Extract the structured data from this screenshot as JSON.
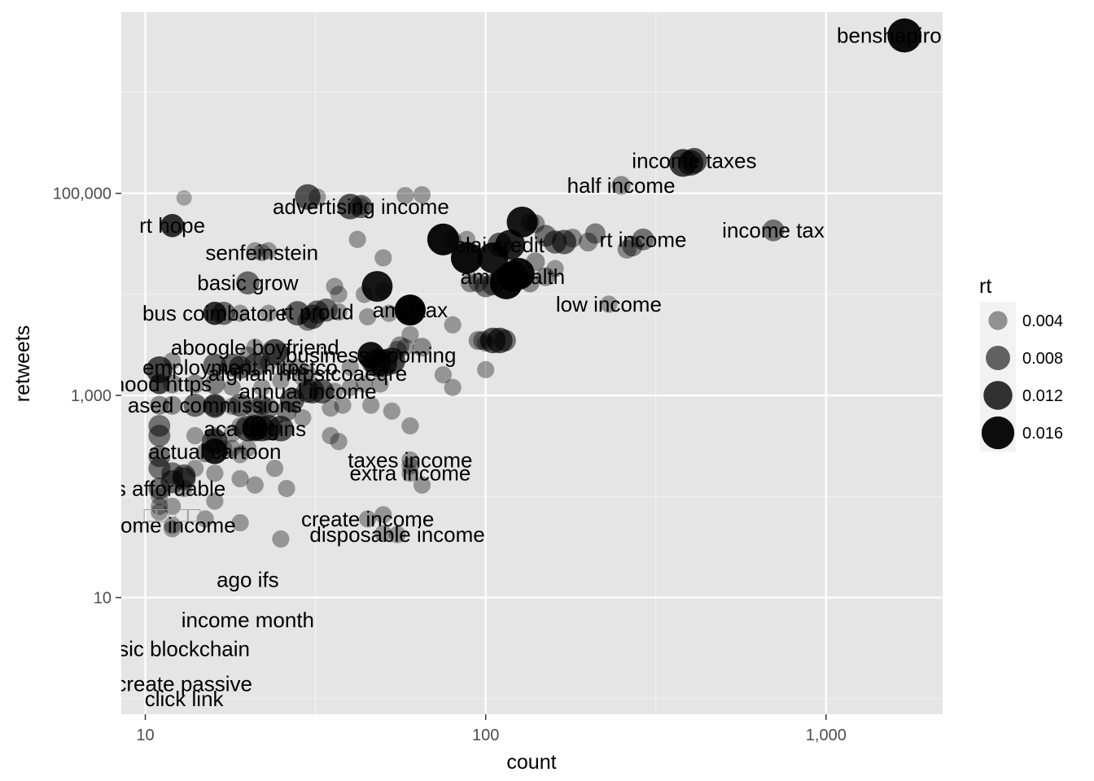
{
  "chart_data": {
    "type": "scatter",
    "xlabel": "count",
    "ylabel": "retweets",
    "x_scale": "log10",
    "y_scale": "log10",
    "xlim": [
      8.5,
      2200
    ],
    "ylim": [
      0.7,
      6200000
    ],
    "x_ticks": [
      10,
      100,
      1000
    ],
    "x_tick_labels": [
      "10",
      "100",
      "1,000"
    ],
    "y_ticks": [
      10,
      1000,
      100000
    ],
    "y_tick_labels": [
      "10",
      "1,000",
      "100,000"
    ],
    "grid": true,
    "legend": {
      "title": "rt",
      "position": "right",
      "values": [
        0.004,
        0.008,
        0.012,
        0.016
      ],
      "labels": [
        "0.004",
        "0.008",
        "0.012",
        "0.016"
      ]
    },
    "labeled_points": [
      {
        "label": "benshapiro fre",
        "x": 1700,
        "y": 3650000,
        "rt": 0.0175
      },
      {
        "label": "half income",
        "x": 250,
        "y": 120000,
        "rt": 0.004
      },
      {
        "label": "income taxes",
        "x": 410,
        "y": 210000,
        "rt": 0.009
      },
      {
        "label": "income tax",
        "x": 700,
        "y": 43000,
        "rt": 0.006
      },
      {
        "label": "rt income",
        "x": 290,
        "y": 35000,
        "rt": 0.006
      },
      {
        "label": "low income",
        "x": 230,
        "y": 8000,
        "rt": 0.003
      },
      {
        "label": "clai credit",
        "x": 110,
        "y": 31000,
        "rt": 0.008
      },
      {
        "label": "amp health",
        "x": 120,
        "y": 15000,
        "rt": 0.014
      },
      {
        "label": "amp tax",
        "x": 60,
        "y": 7000,
        "rt": 0.014
      },
      {
        "label": "advertising income",
        "x": 43,
        "y": 74000,
        "rt": 0.007
      },
      {
        "label": "rt hope",
        "x": 12,
        "y": 48000,
        "rt": 0.007
      },
      {
        "label": "senfeinstein",
        "x": 22,
        "y": 26000,
        "rt": 0.003
      },
      {
        "label": "basic grow",
        "x": 20,
        "y": 13000,
        "rt": 0.007
      },
      {
        "label": "bus coimbatore",
        "x": 16,
        "y": 6500,
        "rt": 0.007
      },
      {
        "label": "rt proud",
        "x": 32,
        "y": 6700,
        "rt": 0.007
      },
      {
        "label": "aboogle boyfriend",
        "x": 21,
        "y": 3000,
        "rt": 0.003
      },
      {
        "label": "employment httpstco",
        "x": 19,
        "y": 1900,
        "rt": 0.007
      },
      {
        "label": "business booming",
        "x": 46,
        "y": 2500,
        "rt": 0.01
      },
      {
        "label": "afghan httpstcoaeqre",
        "x": 30,
        "y": 1650,
        "rt": 0.003
      },
      {
        "label": "thood https",
        "x": 11,
        "y": 1300,
        "rt": 0.005
      },
      {
        "label": "annual income",
        "x": 30,
        "y": 1100,
        "rt": 0.007
      },
      {
        "label": "ased commissions",
        "x": 16,
        "y": 800,
        "rt": 0.007
      },
      {
        "label": "aca begins",
        "x": 21,
        "y": 470,
        "rt": 0.009
      },
      {
        "label": "actual cartoon",
        "x": 16,
        "y": 280,
        "rt": 0.009
      },
      {
        "label": "taxes income",
        "x": 60,
        "y": 230,
        "rt": 0.003
      },
      {
        "label": "extra income",
        "x": 60,
        "y": 170,
        "rt": 0.003
      },
      {
        "label": "ess affordable",
        "x": 11,
        "y": 120,
        "rt": 0.006
      },
      {
        "label": "create income",
        "x": 45,
        "y": 60,
        "rt": 0.003
      },
      {
        "label": "home income",
        "x": 12,
        "y": 52,
        "rt": 0.003
      },
      {
        "label": "disposable income",
        "x": 55,
        "y": 42,
        "rt": 0.003
      }
    ],
    "unlabeled_text_points": [
      {
        "label": "ago ifs",
        "x": 20,
        "y": 15
      },
      {
        "label": "income month",
        "x": 20,
        "y": 6
      },
      {
        "label": "basic blockchain",
        "x": 12,
        "y": 3.1
      },
      {
        "label": "create passive",
        "x": 13,
        "y": 1.4
      },
      {
        "label": "click link",
        "x": 13,
        "y": 1.0
      }
    ],
    "glyph_label": {
      "label": "□□ □□",
      "x": 12,
      "y": 66
    },
    "other_points": [
      [
        13,
        90000,
        0.002
      ],
      [
        30,
        92000,
        0.009
      ],
      [
        32,
        92000,
        0.003
      ],
      [
        40,
        74000,
        0.009
      ],
      [
        43,
        74000,
        0.003
      ],
      [
        58,
        95000,
        0.003
      ],
      [
        65,
        97000,
        0.003
      ],
      [
        12,
        48000,
        0.007
      ],
      [
        21,
        27000,
        0.003
      ],
      [
        23,
        27000,
        0.003
      ],
      [
        42,
        35000,
        0.003
      ],
      [
        50,
        23000,
        0.003
      ],
      [
        80,
        35000,
        0.003
      ],
      [
        88,
        35000,
        0.003
      ],
      [
        75,
        35000,
        0.015
      ],
      [
        88,
        23000,
        0.015
      ],
      [
        105,
        23000,
        0.014
      ],
      [
        118,
        31000,
        0.013
      ],
      [
        115,
        13000,
        0.016
      ],
      [
        125,
        16000,
        0.015
      ],
      [
        128,
        52000,
        0.014
      ],
      [
        135,
        52000,
        0.004
      ],
      [
        140,
        50000,
        0.004
      ],
      [
        150,
        38000,
        0.006
      ],
      [
        160,
        33000,
        0.007
      ],
      [
        170,
        33000,
        0.008
      ],
      [
        180,
        36000,
        0.004
      ],
      [
        200,
        33000,
        0.004
      ],
      [
        210,
        40000,
        0.005
      ],
      [
        260,
        28000,
        0.004
      ],
      [
        270,
        30000,
        0.005
      ],
      [
        140,
        21000,
        0.004
      ],
      [
        150,
        15000,
        0.004
      ],
      [
        135,
        13000,
        0.004
      ],
      [
        120,
        13000,
        0.004
      ],
      [
        100,
        12000,
        0.006
      ],
      [
        105,
        12500,
        0.006
      ],
      [
        95,
        13000,
        0.004
      ],
      [
        90,
        13000,
        0.004
      ],
      [
        160,
        18000,
        0.003
      ],
      [
        380,
        200000,
        0.011
      ],
      [
        400,
        200000,
        0.009
      ],
      [
        48,
        12000,
        0.014
      ],
      [
        36,
        12000,
        0.003
      ],
      [
        37,
        10000,
        0.003
      ],
      [
        44,
        10000,
        0.003
      ],
      [
        50,
        11000,
        0.003
      ],
      [
        16,
        6500,
        0.007
      ],
      [
        17,
        6500,
        0.007
      ],
      [
        19,
        6500,
        0.003
      ],
      [
        23,
        6500,
        0.003
      ],
      [
        28,
        6500,
        0.008
      ],
      [
        31,
        6000,
        0.008
      ],
      [
        34,
        7000,
        0.007
      ],
      [
        37,
        6700,
        0.003
      ],
      [
        45,
        6000,
        0.003
      ],
      [
        52,
        6500,
        0.003
      ],
      [
        60,
        7000,
        0.014
      ],
      [
        30,
        5500,
        0.005
      ],
      [
        60,
        4000,
        0.003
      ],
      [
        80,
        5000,
        0.003
      ],
      [
        95,
        3500,
        0.004
      ],
      [
        98,
        3500,
        0.004
      ],
      [
        105,
        3500,
        0.009
      ],
      [
        110,
        3500,
        0.009
      ],
      [
        114,
        3500,
        0.006
      ],
      [
        100,
        3300,
        0.003
      ],
      [
        58,
        3000,
        0.003
      ],
      [
        65,
        3000,
        0.004
      ],
      [
        24,
        2700,
        0.009
      ],
      [
        25,
        2700,
        0.003
      ],
      [
        22,
        2200,
        0.003
      ],
      [
        20,
        2500,
        0.003
      ],
      [
        12,
        2200,
        0.003
      ],
      [
        11,
        1800,
        0.01
      ],
      [
        16,
        2000,
        0.007
      ],
      [
        18,
        2000,
        0.007
      ],
      [
        21,
        2000,
        0.007
      ],
      [
        23,
        2100,
        0.003
      ],
      [
        26,
        1900,
        0.003
      ],
      [
        28,
        1900,
        0.003
      ],
      [
        40,
        1900,
        0.003
      ],
      [
        46,
        2500,
        0.01
      ],
      [
        48,
        2100,
        0.011
      ],
      [
        50,
        2100,
        0.011
      ],
      [
        53,
        2200,
        0.01
      ],
      [
        56,
        3100,
        0.004
      ],
      [
        46,
        2100,
        0.004
      ],
      [
        55,
        2800,
        0.004
      ],
      [
        75,
        1600,
        0.003
      ],
      [
        80,
        1200,
        0.003
      ],
      [
        100,
        1800,
        0.003
      ],
      [
        11,
        1300,
        0.005
      ],
      [
        12,
        1300,
        0.004
      ],
      [
        14,
        1300,
        0.004
      ],
      [
        16,
        1300,
        0.005
      ],
      [
        18,
        1200,
        0.003
      ],
      [
        22,
        1200,
        0.003
      ],
      [
        25,
        1400,
        0.003
      ],
      [
        29,
        1500,
        0.003
      ],
      [
        31,
        1100,
        0.008
      ],
      [
        33,
        1100,
        0.008
      ],
      [
        36,
        1100,
        0.003
      ],
      [
        40,
        1200,
        0.003
      ],
      [
        44,
        1300,
        0.003
      ],
      [
        49,
        1300,
        0.003
      ],
      [
        11,
        800,
        0.004
      ],
      [
        12,
        800,
        0.004
      ],
      [
        14,
        800,
        0.007
      ],
      [
        16,
        780,
        0.007
      ],
      [
        18,
        780,
        0.003
      ],
      [
        19,
        800,
        0.007
      ],
      [
        21,
        750,
        0.005
      ],
      [
        22,
        800,
        0.005
      ],
      [
        23,
        750,
        0.005
      ],
      [
        26,
        700,
        0.005
      ],
      [
        27,
        900,
        0.008
      ],
      [
        29,
        600,
        0.003
      ],
      [
        35,
        750,
        0.003
      ],
      [
        38,
        800,
        0.003
      ],
      [
        46,
        800,
        0.003
      ],
      [
        53,
        700,
        0.003
      ],
      [
        60,
        500,
        0.003
      ],
      [
        11,
        500,
        0.006
      ],
      [
        11,
        400,
        0.006
      ],
      [
        14,
        400,
        0.003
      ],
      [
        16,
        400,
        0.003
      ],
      [
        16,
        350,
        0.009
      ],
      [
        18,
        420,
        0.003
      ],
      [
        19,
        500,
        0.003
      ],
      [
        20,
        470,
        0.009
      ],
      [
        21,
        480,
        0.009
      ],
      [
        22,
        470,
        0.009
      ],
      [
        23,
        480,
        0.009
      ],
      [
        25,
        470,
        0.009
      ],
      [
        15,
        270,
        0.004
      ],
      [
        16,
        280,
        0.009
      ],
      [
        17,
        300,
        0.003
      ],
      [
        18,
        300,
        0.003
      ],
      [
        19,
        260,
        0.003
      ],
      [
        20,
        300,
        0.003
      ],
      [
        35,
        400,
        0.003
      ],
      [
        37,
        350,
        0.003
      ],
      [
        11,
        250,
        0.006
      ],
      [
        11,
        190,
        0.006
      ],
      [
        12,
        170,
        0.006
      ],
      [
        12,
        140,
        0.007
      ],
      [
        13,
        150,
        0.007
      ],
      [
        13,
        160,
        0.007
      ],
      [
        14,
        190,
        0.003
      ],
      [
        16,
        170,
        0.003
      ],
      [
        19,
        150,
        0.003
      ],
      [
        21,
        130,
        0.003
      ],
      [
        24,
        190,
        0.003
      ],
      [
        26,
        120,
        0.003
      ],
      [
        60,
        200,
        0.003
      ],
      [
        65,
        130,
        0.003
      ],
      [
        11,
        100,
        0.003
      ],
      [
        11,
        80,
        0.003
      ],
      [
        12,
        80,
        0.003
      ],
      [
        13,
        120,
        0.003
      ],
      [
        16,
        90,
        0.003
      ],
      [
        11,
        70,
        0.003
      ],
      [
        12,
        48,
        0.003
      ],
      [
        15,
        60,
        0.003
      ],
      [
        19,
        55,
        0.003
      ],
      [
        25,
        38,
        0.003
      ],
      [
        50,
        66,
        0.003
      ],
      [
        50,
        43,
        0.003
      ]
    ]
  }
}
